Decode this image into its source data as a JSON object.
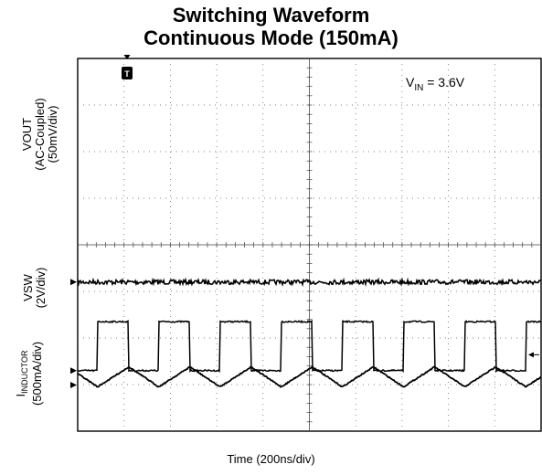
{
  "chart_data": {
    "type": "line",
    "title_line1": "Switching Waveform",
    "title_line2": "Continuous Mode (150mA)",
    "xlabel": "Time (200ns/div)",
    "grid": true,
    "divisions": {
      "x": 10,
      "y": 8
    },
    "trigger_marker": "T",
    "annotation": {
      "prefix": "V",
      "subscript": "IN",
      "suffix": " = 3.6V"
    },
    "channels": [
      {
        "label_lines": [
          "VOUT",
          "(AC-Coupled)",
          "(50mV/div)"
        ],
        "scale": "50mV/div",
        "shape": "flat-noisy",
        "ground_div": 3.2,
        "amplitude_div": 0.05
      },
      {
        "label_lines": [
          "VSW",
          "(2V/div)"
        ],
        "scale": "2V/div",
        "shape": "square",
        "low_div": 1.3,
        "high_div": 2.35,
        "period_div": 1.32,
        "duty": 0.51,
        "first_rise_div": 0.43
      },
      {
        "label_lines": [
          "(500mA/div)"
        ],
        "label_main": {
          "prefix": "I",
          "subscript": "INDUCTOR"
        },
        "scale": "500mA/div",
        "shape": "triangle",
        "low_div": 0.95,
        "high_div": 1.38,
        "period_div": 1.32
      }
    ]
  }
}
